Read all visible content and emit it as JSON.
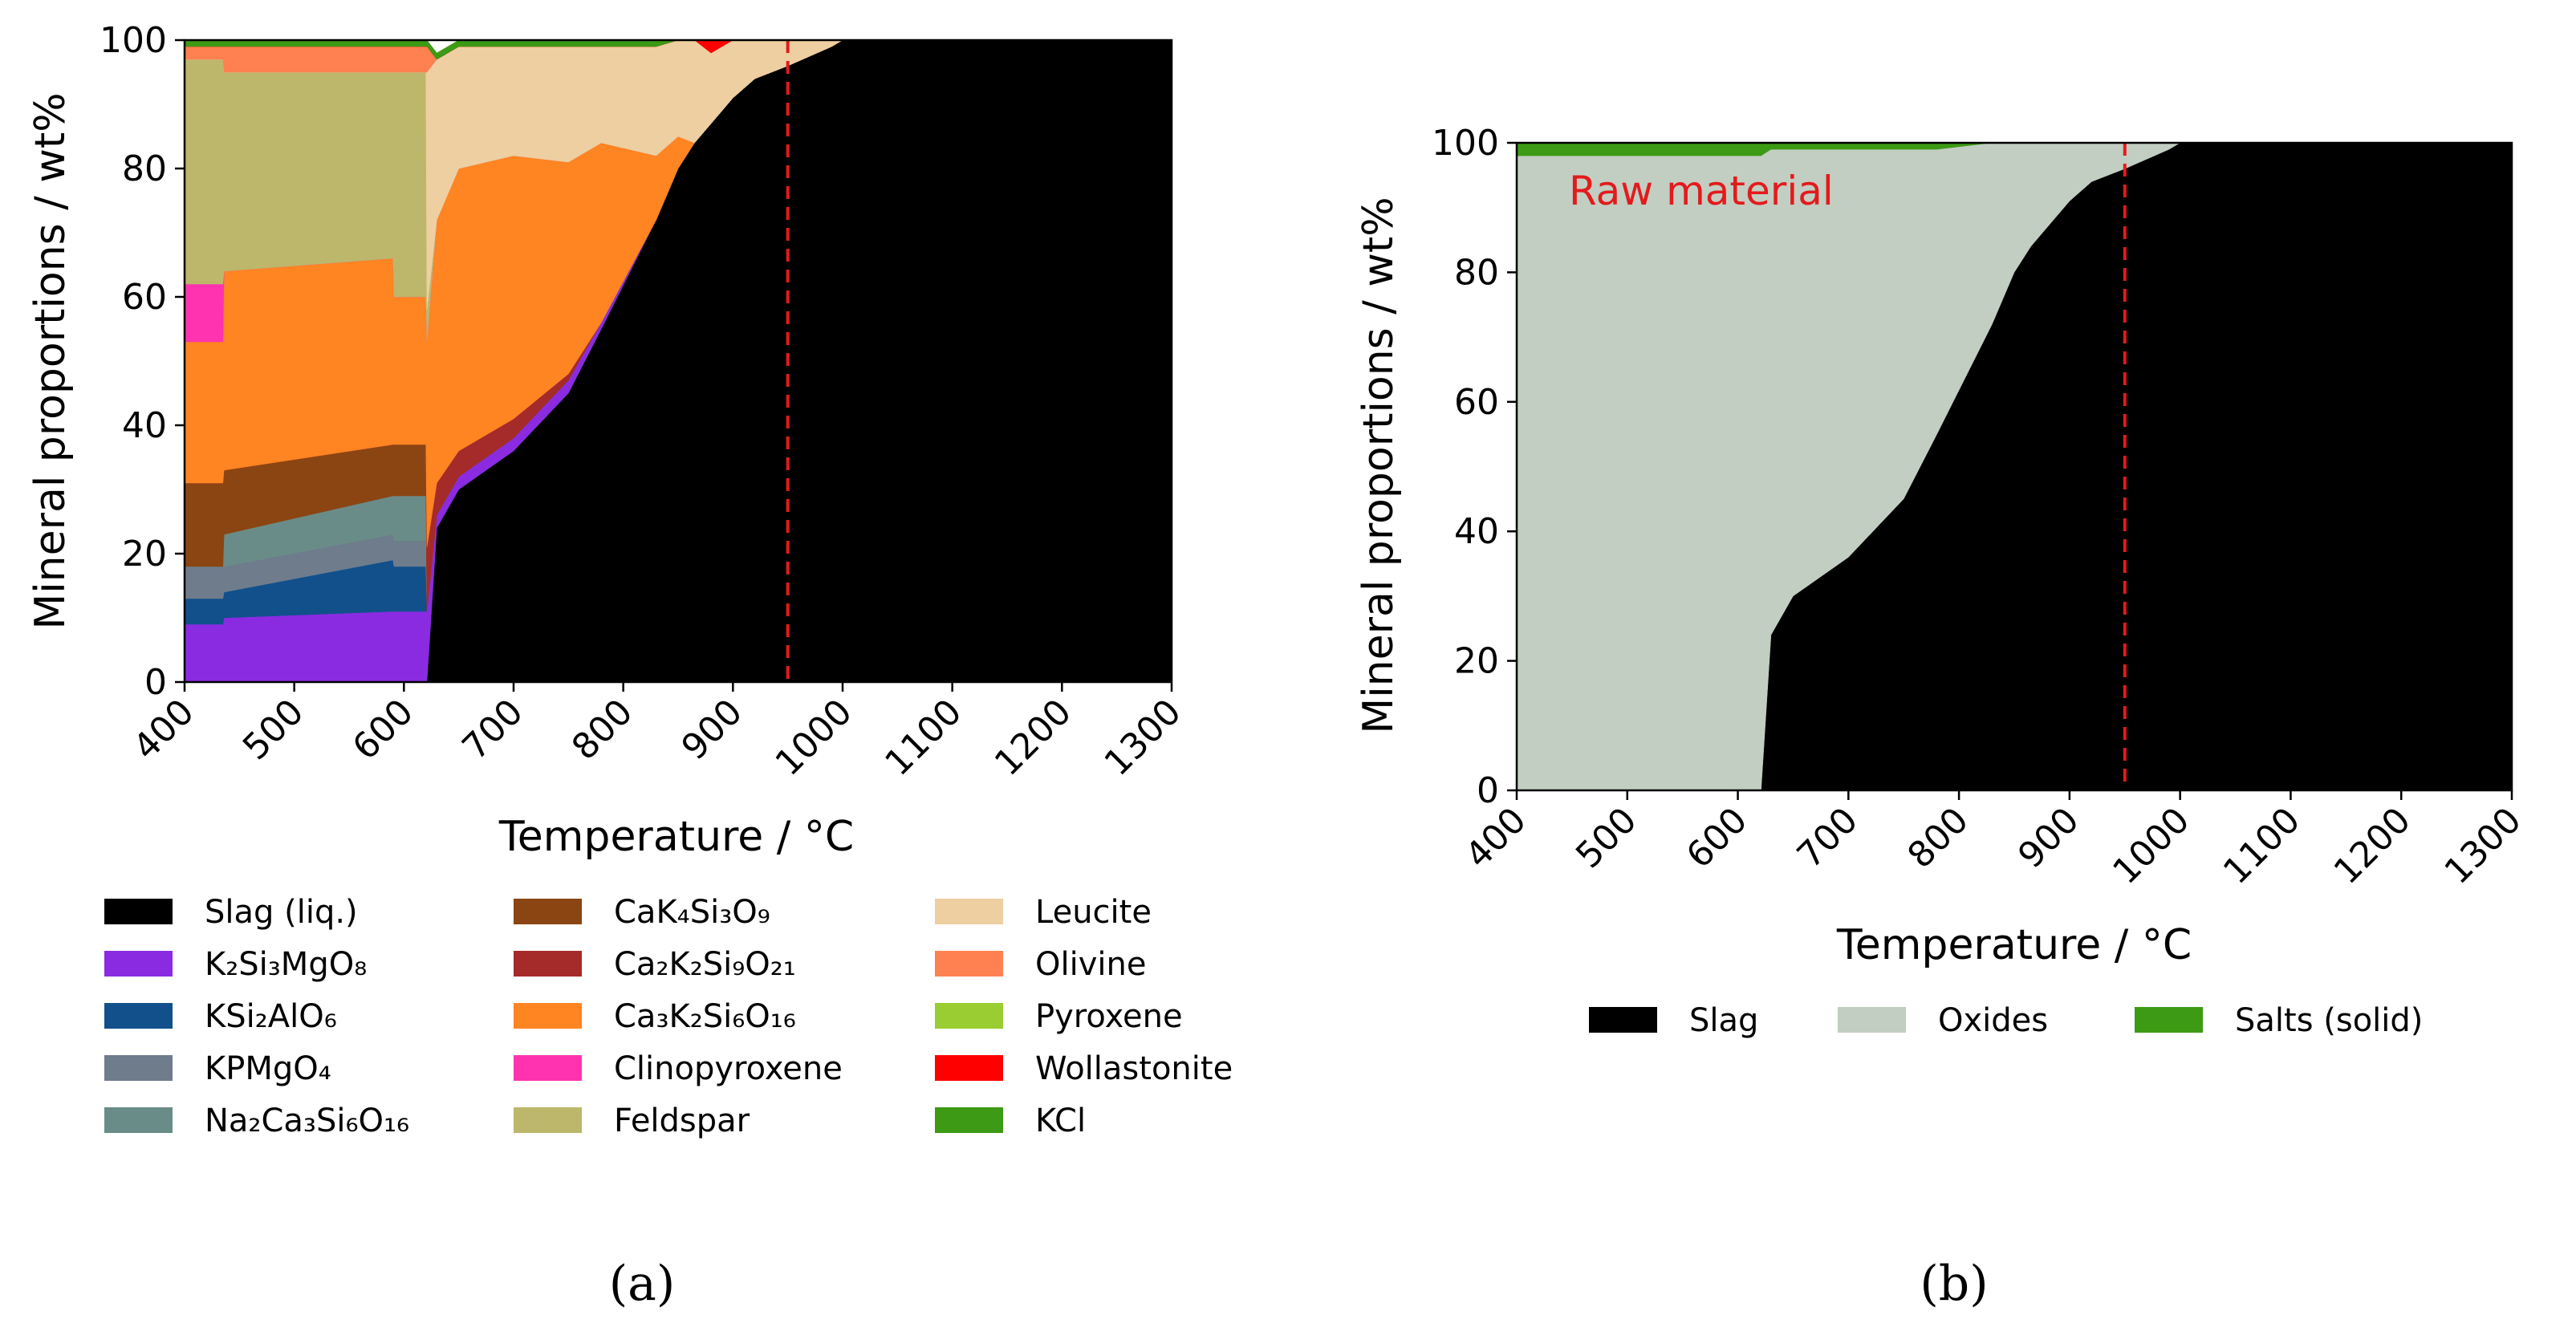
{
  "chart_data": [
    {
      "type": "area",
      "panel_label": "(a)",
      "xlabel": "Temperature / °C",
      "ylabel": "Mineral proportions / wt%",
      "xlim": [
        400,
        1300
      ],
      "ylim": [
        0,
        100
      ],
      "xticks": [
        "400",
        "500",
        "600",
        "700",
        "800",
        "900",
        "1000",
        "1100",
        "1200",
        "1300"
      ],
      "yticks": [
        "0",
        "20",
        "40",
        "60",
        "80",
        "100"
      ],
      "vline": {
        "x": 950,
        "color": "#e31a1c",
        "style": "dashed"
      },
      "x": [
        400,
        435,
        436,
        590,
        591,
        620,
        621,
        630,
        650,
        700,
        750,
        780,
        830,
        850,
        865,
        880,
        900,
        920,
        950,
        990,
        1000,
        1300
      ],
      "series": [
        {
          "name": "Slag (liq.)",
          "color": "#000000",
          "values": [
            0,
            0,
            0,
            0,
            0,
            0,
            0,
            24,
            30,
            36,
            45,
            55,
            72,
            80,
            84,
            87,
            91,
            94,
            96,
            99,
            100,
            100
          ]
        },
        {
          "name": "K2Si3MgO8",
          "color": "#8a2be2",
          "values": [
            9,
            9,
            10,
            11,
            11,
            11,
            11,
            2,
            2,
            2,
            2,
            1,
            0,
            0,
            0,
            0,
            0,
            0,
            0,
            0,
            0,
            0
          ]
        },
        {
          "name": "KSi2AlO6",
          "color": "#11508b",
          "values": [
            4,
            4,
            4,
            8,
            7,
            7,
            0,
            0,
            0,
            0,
            0,
            0,
            0,
            0,
            0,
            0,
            0,
            0,
            0,
            0,
            0,
            0
          ]
        },
        {
          "name": "KPMgO4",
          "color": "#6e7c8c",
          "values": [
            5,
            5,
            4,
            4,
            4,
            4,
            0,
            0,
            0,
            0,
            0,
            0,
            0,
            0,
            0,
            0,
            0,
            0,
            0,
            0,
            0,
            0
          ]
        },
        {
          "name": "Na2Ca3Si6O16",
          "color": "#6a8c88",
          "values": [
            0,
            0,
            5,
            6,
            7,
            7,
            0,
            0,
            0,
            0,
            0,
            0,
            0,
            0,
            0,
            0,
            0,
            0,
            0,
            0,
            0,
            0
          ]
        },
        {
          "name": "CaK4Si3O9",
          "color": "#8b4513",
          "values": [
            13,
            13,
            10,
            8,
            8,
            8,
            0,
            0,
            0,
            0,
            0,
            0,
            0,
            0,
            0,
            0,
            0,
            0,
            0,
            0,
            0,
            0
          ]
        },
        {
          "name": "Ca2K2Si9O21",
          "color": "#a52a2a",
          "values": [
            0,
            0,
            0,
            0,
            0,
            0,
            10,
            5,
            4,
            3,
            1,
            0,
            0,
            0,
            0,
            0,
            0,
            0,
            0,
            0,
            0,
            0
          ]
        },
        {
          "name": "Ca3K2Si6O16",
          "color": "#ff8422",
          "values": [
            22,
            22,
            31,
            29,
            23,
            23,
            32,
            41,
            44,
            41,
            33,
            28,
            10,
            5,
            0,
            0,
            0,
            0,
            0,
            0,
            0,
            0
          ]
        },
        {
          "name": "Clinopyroxene",
          "color": "#ff33b0",
          "values": [
            9,
            9,
            0,
            0,
            0,
            0,
            0,
            0,
            0,
            0,
            0,
            0,
            0,
            0,
            0,
            0,
            0,
            0,
            0,
            0,
            0,
            0
          ]
        },
        {
          "name": "Feldspar",
          "color": "#bdb76b",
          "values": [
            35,
            35,
            31,
            29,
            35,
            35,
            5,
            0,
            0,
            0,
            0,
            0,
            0,
            0,
            0,
            0,
            0,
            0,
            0,
            0,
            0,
            0
          ]
        },
        {
          "name": "Leucite",
          "color": "#eecfa1",
          "values": [
            0,
            0,
            0,
            0,
            0,
            0,
            37,
            25,
            19,
            17,
            18,
            15,
            17,
            15,
            16,
            11,
            9,
            6,
            4,
            1,
            0,
            0
          ]
        },
        {
          "name": "Olivine",
          "color": "#ff8050",
          "values": [
            2,
            2,
            4,
            4,
            4,
            4,
            4,
            0,
            0,
            0,
            0,
            0,
            0,
            0,
            0,
            0,
            0,
            0,
            0,
            0,
            0,
            0
          ]
        },
        {
          "name": "Pyroxene",
          "color": "#9acd32",
          "values": [
            0,
            0,
            0,
            0,
            0,
            0,
            0,
            0,
            0,
            0,
            0,
            0,
            0,
            0,
            0,
            0,
            0,
            0,
            0,
            0,
            0,
            0
          ]
        },
        {
          "name": "Wollastonite",
          "color": "#ff0000",
          "values": [
            0,
            0,
            0,
            0,
            0,
            0,
            0,
            0,
            0,
            0,
            0,
            0,
            0,
            0,
            0,
            2,
            0,
            0,
            0,
            0,
            0,
            0
          ]
        },
        {
          "name": "KCl",
          "color": "#3c9a14",
          "values": [
            1,
            1,
            1,
            1,
            1,
            1,
            1,
            1,
            1,
            1,
            1,
            1,
            1,
            0,
            0,
            0,
            0,
            0,
            0,
            0,
            0,
            0
          ]
        }
      ],
      "legend": {
        "placement": "below",
        "columns": [
          [
            {
              "text": "Slag (liq.)",
              "color": "#000000"
            },
            {
              "text": "K₂Si₃MgO₈",
              "color": "#8a2be2"
            },
            {
              "text": "KSi₂AlO₆",
              "color": "#11508b"
            },
            {
              "text": "KPMgO₄",
              "color": "#6e7c8c"
            },
            {
              "text": "Na₂Ca₃Si₆O₁₆",
              "color": "#6a8c88"
            }
          ],
          [
            {
              "text": "CaK₄Si₃O₉",
              "color": "#8b4513"
            },
            {
              "text": "Ca₂K₂Si₉O₂₁",
              "color": "#a52a2a"
            },
            {
              "text": "Ca₃K₂Si₆O₁₆",
              "color": "#ff8422"
            },
            {
              "text": "Clinopyroxene",
              "color": "#ff33b0"
            },
            {
              "text": "Feldspar",
              "color": "#bdb76b"
            }
          ],
          [
            {
              "text": "Leucite",
              "color": "#eecfa1"
            },
            {
              "text": "Olivine",
              "color": "#ff8050"
            },
            {
              "text": "Pyroxene",
              "color": "#9acd32"
            },
            {
              "text": "Wollastonite",
              "color": "#ff0000"
            },
            {
              "text": "KCl",
              "color": "#3c9a14"
            }
          ]
        ]
      }
    },
    {
      "type": "area",
      "panel_label": "(b)",
      "xlabel": "Temperature / °C",
      "ylabel": "Mineral proportions / wt%",
      "xlim": [
        400,
        1300
      ],
      "ylim": [
        0,
        100
      ],
      "xticks": [
        "400",
        "500",
        "600",
        "700",
        "800",
        "900",
        "1000",
        "1100",
        "1200",
        "1300"
      ],
      "yticks": [
        "0",
        "20",
        "40",
        "60",
        "80",
        "100"
      ],
      "vline": {
        "x": 950,
        "color": "#e31a1c",
        "style": "dashed"
      },
      "annotation": {
        "text": "Raw material",
        "color": "#e31a1c"
      },
      "x": [
        400,
        620,
        621,
        630,
        650,
        700,
        750,
        780,
        830,
        850,
        865,
        880,
        900,
        920,
        950,
        990,
        1000,
        1300
      ],
      "series": [
        {
          "name": "Slag",
          "color": "#000000",
          "values": [
            0,
            0,
            0,
            24,
            30,
            36,
            45,
            55,
            72,
            80,
            84,
            87,
            91,
            94,
            96,
            99,
            100,
            100
          ]
        },
        {
          "name": "Oxides",
          "color": "#c2cec2",
          "values": [
            98,
            98,
            98,
            75,
            69,
            63,
            54,
            44,
            28,
            20,
            16,
            13,
            9,
            6,
            4,
            1,
            0,
            0
          ]
        },
        {
          "name": "Salts (solid)",
          "color": "#3c9a14",
          "values": [
            2,
            2,
            2,
            1,
            1,
            1,
            1,
            1,
            0,
            0,
            0,
            0,
            0,
            0,
            0,
            0,
            0,
            0
          ]
        }
      ],
      "legend": {
        "placement": "below",
        "items": [
          {
            "text": "Slag",
            "color": "#000000"
          },
          {
            "text": "Oxides",
            "color": "#c2cec2"
          },
          {
            "text": "Salts (solid)",
            "color": "#3c9a14"
          }
        ]
      }
    }
  ]
}
